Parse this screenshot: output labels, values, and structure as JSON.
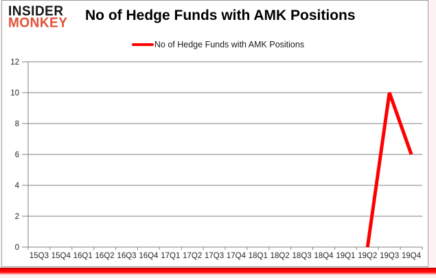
{
  "logo": {
    "line1": "INSIDER",
    "line2": "MONKEY"
  },
  "header": {
    "title": "No of Hedge Funds with AMK Positions"
  },
  "legend": {
    "label": "No of Hedge Funds with AMK Positions",
    "color": "#ff0000"
  },
  "colors": {
    "series_line": "#ff0000",
    "logo_accent": "#e25037",
    "grid": "#808080",
    "axis_text": "#262626",
    "brand_bar": "#ff0000",
    "frame_border": "#9b9b9b"
  },
  "chart_data": {
    "type": "line",
    "title": "No of Hedge Funds with AMK Positions",
    "xlabel": "",
    "ylabel": "",
    "categories": [
      "15Q3",
      "15Q4",
      "16Q1",
      "16Q2",
      "16Q3",
      "16Q4",
      "17Q1",
      "17Q2",
      "17Q3",
      "17Q4",
      "18Q1",
      "18Q2",
      "18Q3",
      "18Q4",
      "19Q1",
      "19Q2",
      "19Q3",
      "19Q4"
    ],
    "series": [
      {
        "name": "No of Hedge Funds with AMK Positions",
        "values": [
          null,
          null,
          null,
          null,
          null,
          null,
          null,
          null,
          null,
          null,
          null,
          null,
          null,
          null,
          null,
          0,
          10,
          6
        ]
      }
    ],
    "ylim": [
      0,
      12
    ],
    "ytick_step": 2,
    "grid": true,
    "legend_position": "top"
  }
}
